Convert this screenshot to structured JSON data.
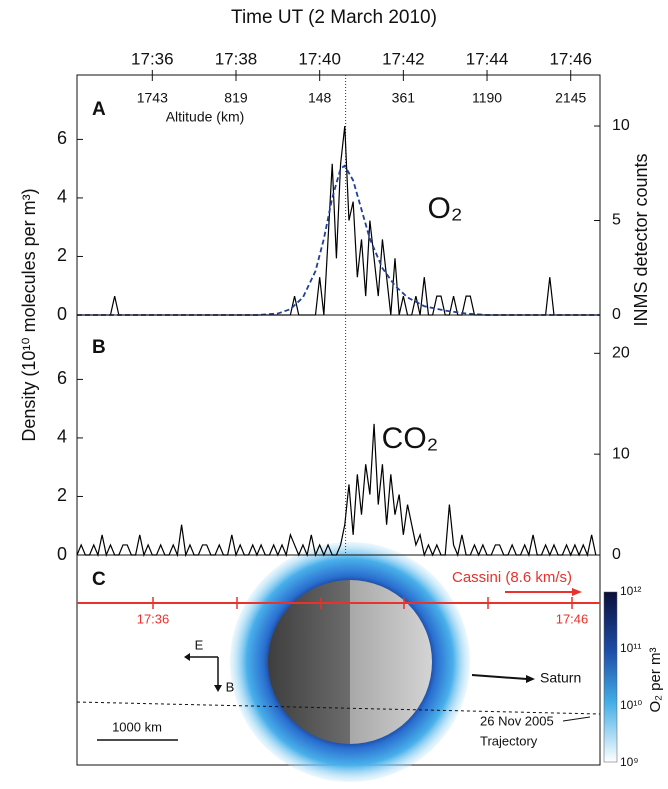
{
  "chart_data": [
    {
      "type": "line",
      "title": "Time UT (2 March 2010)",
      "panel": "A",
      "annotation": "O₂",
      "ylabel": "Density (10¹⁰ molecules per m³)",
      "y2label": "INMS detector counts",
      "xlim": [
        34.2,
        46.7
      ],
      "xticks": [
        {
          "value": 36,
          "label": "17:36"
        },
        {
          "value": 38,
          "label": "17:38"
        },
        {
          "value": 40,
          "label": "17:40"
        },
        {
          "value": 42,
          "label": "17:42"
        },
        {
          "value": 44,
          "label": "17:44"
        },
        {
          "value": 46,
          "label": "17:46"
        }
      ],
      "altitude_label": "Altitude (km)",
      "altitude_values": [
        1743,
        819,
        148,
        361,
        1190,
        2145
      ],
      "vline": 40.62,
      "ylim": [
        0,
        8.2
      ],
      "yticks": [
        0,
        2,
        4,
        6
      ],
      "y2lim": [
        0,
        12.7
      ],
      "y2ticks": [
        0,
        5,
        10
      ],
      "series": [
        {
          "color": "#000000",
          "axis": "y2",
          "dash": false,
          "x": [
            34.2,
            35.0,
            35.1,
            35.2,
            39.3,
            39.4,
            39.5,
            39.9,
            40.0,
            40.1,
            40.2,
            40.3,
            40.4,
            40.5,
            40.6,
            40.7,
            40.8,
            40.9,
            41.0,
            41.1,
            41.2,
            41.3,
            41.4,
            41.5,
            41.6,
            41.7,
            41.8,
            41.9,
            42.0,
            42.1,
            42.2,
            42.3,
            42.4,
            42.5,
            42.6,
            42.7,
            42.8,
            42.9,
            43.0,
            43.1,
            43.2,
            43.3,
            43.4,
            43.5,
            43.6,
            43.7,
            45.4,
            45.5,
            45.6,
            46.7
          ],
          "values": [
            0,
            0,
            1,
            0,
            0,
            1,
            0,
            0,
            2,
            0,
            4,
            8,
            3,
            8,
            10,
            5,
            6,
            2,
            4,
            1,
            5,
            3,
            1,
            4,
            2,
            0,
            3,
            0,
            1,
            0,
            0,
            1,
            0,
            2,
            0,
            0,
            1,
            1,
            0,
            0,
            1,
            0,
            0,
            1,
            1,
            0,
            0,
            2,
            0,
            0
          ]
        },
        {
          "color": "#1f3f9a",
          "axis": "y",
          "dash": true,
          "x": [
            34.2,
            38.5,
            39.0,
            39.3,
            39.6,
            39.9,
            40.1,
            40.3,
            40.5,
            40.6,
            40.8,
            41.0,
            41.2,
            41.5,
            41.8,
            42.1,
            42.5,
            43.0,
            43.5,
            44.0,
            46.7
          ],
          "values": [
            0,
            0,
            0.05,
            0.2,
            0.6,
            1.5,
            2.6,
            4.0,
            5.0,
            5.1,
            4.6,
            3.6,
            2.6,
            1.6,
            1.0,
            0.6,
            0.3,
            0.15,
            0.05,
            0,
            0
          ]
        }
      ]
    },
    {
      "type": "line",
      "panel": "B",
      "annotation": "CO₂",
      "xlim": [
        34.2,
        46.7
      ],
      "vline": 40.62,
      "ylim": [
        0,
        8.2
      ],
      "yticks": [
        0,
        2,
        4,
        6
      ],
      "y2lim": [
        0,
        23.8
      ],
      "y2ticks": [
        0,
        10,
        20
      ],
      "series": [
        {
          "color": "#000000",
          "axis": "y2",
          "dash": false,
          "x": [
            34.2,
            34.3,
            34.4,
            34.5,
            34.6,
            34.7,
            34.8,
            34.9,
            35,
            35.1,
            35.2,
            35.3,
            35.4,
            35.5,
            35.6,
            35.7,
            35.8,
            35.9,
            36,
            36.1,
            36.2,
            36.3,
            36.4,
            36.5,
            36.6,
            36.7,
            36.8,
            36.9,
            37,
            37.1,
            37.2,
            37.3,
            37.4,
            37.5,
            37.6,
            37.7,
            37.8,
            37.9,
            38,
            38.1,
            38.2,
            38.3,
            38.4,
            38.5,
            38.6,
            38.7,
            38.8,
            38.9,
            39,
            39.1,
            39.2,
            39.3,
            39.4,
            39.5,
            39.6,
            39.7,
            39.8,
            39.9,
            40,
            40.1,
            40.2,
            40.3,
            40.4,
            40.5,
            40.6,
            40.7,
            40.8,
            40.9,
            41,
            41.1,
            41.2,
            41.3,
            41.4,
            41.5,
            41.6,
            41.7,
            41.8,
            41.9,
            42,
            42.1,
            42.2,
            42.3,
            42.4,
            42.5,
            42.6,
            42.7,
            42.8,
            42.9,
            43,
            43.1,
            43.2,
            43.3,
            43.4,
            43.5,
            43.6,
            43.7,
            43.8,
            43.9,
            44,
            44.1,
            44.2,
            44.3,
            44.4,
            44.5,
            44.6,
            44.7,
            44.8,
            44.9,
            45,
            45.1,
            45.2,
            45.3,
            45.4,
            45.5,
            45.6,
            45.7,
            45.8,
            45.9,
            46,
            46.1,
            46.2,
            46.3,
            46.4,
            46.5,
            46.6
          ],
          "values": [
            0,
            1,
            0,
            0,
            1,
            0,
            2,
            0,
            1,
            0,
            0,
            1,
            1,
            0,
            0,
            2,
            0,
            1,
            0,
            0,
            1,
            0,
            0,
            1,
            0,
            3,
            0,
            1,
            0,
            0,
            1,
            1,
            0,
            0,
            1,
            0,
            0,
            2,
            0,
            1,
            0,
            0,
            1,
            0,
            1,
            0,
            0,
            1,
            0,
            1,
            0,
            2,
            1,
            0,
            1,
            0,
            2,
            0,
            1,
            0,
            1,
            0,
            0,
            1,
            3,
            7,
            2,
            8,
            4,
            9,
            6,
            13,
            5,
            9,
            3,
            8,
            4,
            6,
            2,
            5,
            3,
            1,
            2,
            0,
            1,
            0,
            1,
            0,
            0,
            5,
            1,
            0,
            2,
            0,
            0,
            1,
            0,
            1,
            0,
            0,
            1,
            1,
            0,
            0,
            1,
            0,
            0,
            1,
            0,
            2,
            0,
            0,
            1,
            0,
            1,
            0,
            0,
            1,
            0,
            1,
            0,
            1,
            0,
            2,
            0
          ]
        }
      ]
    }
  ],
  "panel_c": {
    "label": "C",
    "cassini": "Cassini (8.6 km/s)",
    "time_labels": [
      "17:36",
      "17:46"
    ],
    "field_e": "E",
    "field_b": "B",
    "saturn": "Saturn",
    "trajectory_date": "26 Nov 2005",
    "trajectory": "Trajectory",
    "scale": "1000 km",
    "colorbar": {
      "label": "O₂ per m³",
      "ticks": [
        "10¹²",
        "10¹¹",
        "10¹⁰",
        "10⁹"
      ]
    }
  }
}
